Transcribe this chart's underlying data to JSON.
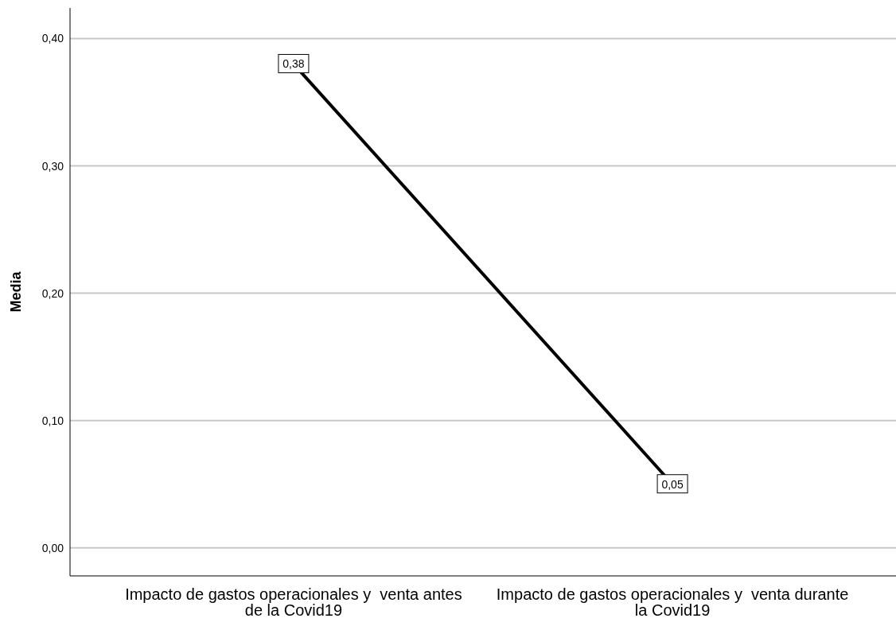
{
  "chart_data": {
    "type": "line",
    "ylabel": "Media",
    "categories": [
      "Impacto de gastos operacionales y  venta antes de la Covid19",
      "Impacto de gastos operacionales y  venta durante la Covid19"
    ],
    "series": [
      {
        "color": "#000000",
        "values": [
          0.38,
          0.05
        ],
        "value_labels": [
          "0,38",
          "0,05"
        ]
      }
    ],
    "ylim": [
      -0.022,
      0.424
    ],
    "yticks": [
      {
        "value": 0,
        "label": "0,00"
      },
      {
        "value": 0.1,
        "label": "0,10"
      },
      {
        "value": 0.2,
        "label": "0,20"
      },
      {
        "value": 0.3,
        "label": "0,30"
      },
      {
        "value": 0.4,
        "label": "0,40"
      }
    ],
    "grid": "y",
    "marker": "square",
    "line_style": "solid"
  }
}
